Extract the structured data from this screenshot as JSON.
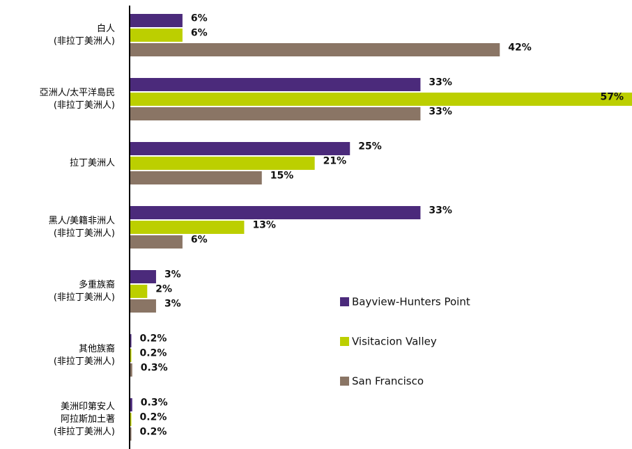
{
  "chart_data": {
    "type": "hbar",
    "categories": [
      "白人\n(非拉丁美洲人)",
      "亞洲人/太平洋島民\n(非拉丁美洲人)",
      "拉丁美洲人",
      "黑人/美籍非洲人\n(非拉丁美洲人)",
      "多重族裔\n(非拉丁美洲人)",
      "其他族裔\n(非拉丁美洲人)",
      "美洲印第安人\n阿拉斯加土著\n(非拉丁美洲人)"
    ],
    "series": [
      {
        "name": "Bayview-Hunters Point",
        "color": "#4b2a7b",
        "values": [
          6,
          33,
          25,
          33,
          3,
          0.2,
          0.3
        ],
        "value_labels": [
          "6%",
          "33%",
          "25%",
          "33%",
          "3%",
          "0.2%",
          "0.3%"
        ]
      },
      {
        "name": "Visitacion Valley",
        "color": "#bccf00",
        "values": [
          6,
          57,
          21,
          13,
          2,
          0.2,
          0.2
        ],
        "value_labels": [
          "6%",
          "57%",
          "21%",
          "13%",
          "2%",
          "0.2%",
          "0.2%"
        ]
      },
      {
        "name": "San Francisco",
        "color": "#8a7565",
        "values": [
          42,
          33,
          15,
          6,
          3,
          0.3,
          0.2
        ],
        "value_labels": [
          "42%",
          "33%",
          "15%",
          "6%",
          "3%",
          "0.3%",
          "0.2%"
        ]
      }
    ]
  }
}
